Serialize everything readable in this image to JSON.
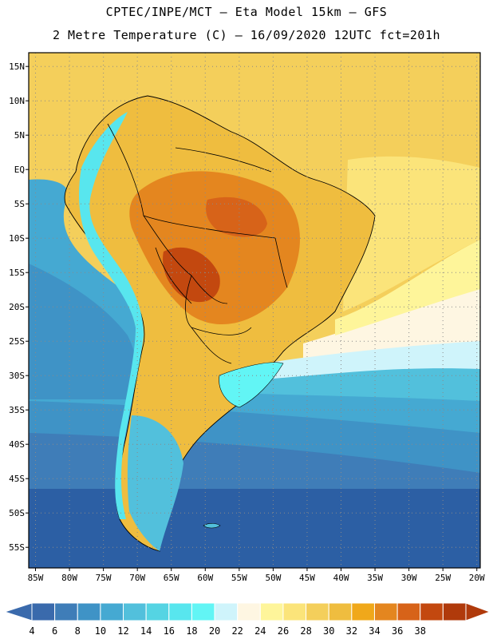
{
  "header": {
    "line1": "CPTEC/INPE/MCT –  Eta Model 15km – GFS",
    "line2": "2 Metre Temperature (C) – 16/09/2020 12UTC fct=201h"
  },
  "map": {
    "lat_labels": [
      "15N",
      "10N",
      "5N",
      "EQ",
      "5S",
      "10S",
      "15S",
      "20S",
      "25S",
      "30S",
      "35S",
      "40S",
      "45S",
      "50S",
      "55S"
    ],
    "lat_values": [
      15,
      10,
      5,
      0,
      -5,
      -10,
      -15,
      -20,
      -25,
      -30,
      -35,
      -40,
      -45,
      -50,
      -55
    ],
    "lon_labels": [
      "85W",
      "80W",
      "75W",
      "70W",
      "65W",
      "60W",
      "55W",
      "50W",
      "45W",
      "40W",
      "35W",
      "30W",
      "25W",
      "20W"
    ],
    "lon_values": [
      -85,
      -80,
      -75,
      -70,
      -65,
      -60,
      -55,
      -50,
      -45,
      -40,
      -35,
      -30,
      -25,
      -20
    ],
    "lat_range": [
      -58,
      17
    ],
    "lon_range": [
      -86,
      -19.5
    ]
  },
  "colorbar": {
    "labels": [
      "4",
      "6",
      "8",
      "10",
      "12",
      "14",
      "16",
      "18",
      "20",
      "22",
      "24",
      "26",
      "28",
      "30",
      "32",
      "34",
      "36",
      "38"
    ],
    "colors": [
      "#3a6aac",
      "#3f7db8",
      "#3f93c6",
      "#45a9d2",
      "#52c0dc",
      "#55d4e3",
      "#58e6ee",
      "#62f5f5",
      "#cff4fb",
      "#fef6e2",
      "#fef59a",
      "#fbe47a",
      "#f4cf5b",
      "#efbd3f",
      "#f0a81a",
      "#e4861f",
      "#d76319",
      "#c3480f",
      "#b03a0b"
    ],
    "left_arrow_color": "#3a6aac",
    "right_arrow_color": "#b03a0b"
  }
}
